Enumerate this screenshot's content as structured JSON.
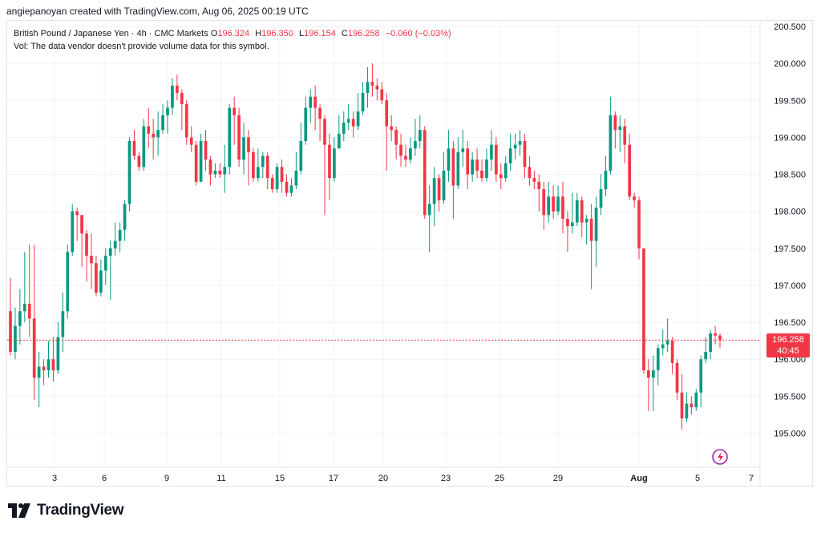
{
  "header": {
    "created_by": "angiepanoyan created with TradingView.com, Aug 06, 2025 00:19 UTC"
  },
  "legend": {
    "symbol": "British Pound / Japanese Yen · 4h · CMC Markets",
    "open_label": "O",
    "open": "196.324",
    "high_label": "H",
    "high": "196.350",
    "low_label": "L",
    "low": "196.154",
    "close_label": "C",
    "close": "196.258",
    "change": "−0.060 (−0.03%)",
    "volume_note": "Vol: The data vendor doesn't provide volume data for this symbol."
  },
  "last_price": {
    "price": "196.258",
    "countdown": "40:45"
  },
  "colors": {
    "up": "#089981",
    "down": "#f23645",
    "grid": "#f0f3fa",
    "axis_text": "#131722"
  },
  "footer": {
    "brand": "TradingView",
    "logo_icon": "tradingview-logo-icon"
  },
  "chart_data": {
    "type": "candlestick",
    "title": "British Pound / Japanese Yen · 4h · CMC Markets",
    "y_axis": {
      "ticks": [
        "195.000",
        "195.500",
        "196.000",
        "196.500",
        "197.000",
        "197.500",
        "198.000",
        "198.500",
        "199.000",
        "199.500",
        "200.000",
        "200.500"
      ],
      "range": [
        194.65,
        200.6
      ]
    },
    "x_axis": {
      "range": [
        1.2,
        7.8
      ],
      "ticks": [
        {
          "label": "3",
          "value": 3.0
        },
        {
          "label": "6",
          "value": 3.9
        },
        {
          "label": "9",
          "value": 5.0
        },
        {
          "label": "11",
          "value": 5.95
        },
        {
          "label": "15",
          "value": 7.0
        },
        {
          "label": "17",
          "value": 7.95
        },
        {
          "label": "20",
          "value": 8.9
        },
        {
          "label": "23",
          "value": 10.0
        },
        {
          "label": "25",
          "value": 10.95
        },
        {
          "label": "29",
          "value": 12.0
        },
        {
          "label": "Aug",
          "value": 13.45
        },
        {
          "label": "5",
          "value": 14.5
        },
        {
          "label": "7",
          "value": 15.45
        }
      ]
    },
    "current_price": 196.258,
    "candles": [
      [
        196.65,
        196.1,
        197.1,
        196.05
      ],
      [
        196.1,
        196.45,
        196.7,
        196.0
      ],
      [
        196.45,
        196.65,
        196.95,
        196.2
      ],
      [
        196.65,
        196.75,
        197.45,
        196.5
      ],
      [
        196.75,
        196.55,
        197.55,
        196.3
      ],
      [
        196.55,
        195.75,
        197.55,
        195.45
      ],
      [
        195.75,
        195.9,
        196.1,
        195.35
      ],
      [
        195.9,
        195.85,
        196.0,
        195.65
      ],
      [
        195.85,
        196.0,
        196.25,
        195.75
      ],
      [
        196.0,
        195.85,
        196.3,
        195.7
      ],
      [
        195.85,
        196.3,
        196.5,
        195.8
      ],
      [
        196.3,
        196.65,
        196.9,
        196.1
      ],
      [
        196.65,
        197.45,
        197.55,
        196.55
      ],
      [
        197.45,
        198.0,
        198.1,
        197.4
      ],
      [
        198.0,
        197.95,
        198.05,
        197.6
      ],
      [
        197.95,
        197.7,
        197.95,
        197.25
      ],
      [
        197.7,
        197.4,
        197.75,
        197.05
      ],
      [
        197.4,
        197.3,
        197.7,
        196.95
      ],
      [
        197.3,
        196.9,
        197.4,
        196.85
      ],
      [
        196.9,
        197.2,
        197.35,
        196.85
      ],
      [
        197.2,
        197.4,
        197.5,
        197.0
      ],
      [
        197.4,
        197.5,
        197.6,
        196.8
      ],
      [
        197.5,
        197.6,
        197.85,
        197.4
      ],
      [
        197.6,
        197.75,
        197.85,
        197.45
      ],
      [
        197.75,
        198.1,
        198.15,
        197.6
      ],
      [
        198.1,
        198.95,
        199.0,
        198.0
      ],
      [
        198.95,
        198.75,
        199.1,
        198.7
      ],
      [
        198.75,
        198.6,
        198.8,
        198.55
      ],
      [
        198.6,
        199.15,
        199.25,
        198.55
      ],
      [
        199.15,
        199.05,
        199.4,
        198.85
      ],
      [
        199.05,
        199.0,
        199.25,
        198.7
      ],
      [
        199.0,
        199.1,
        199.35,
        198.75
      ],
      [
        199.1,
        199.3,
        199.45,
        199.05
      ],
      [
        199.3,
        199.4,
        199.5,
        199.05
      ],
      [
        199.4,
        199.7,
        199.8,
        199.3
      ],
      [
        199.7,
        199.6,
        199.85,
        199.5
      ],
      [
        199.6,
        199.45,
        199.65,
        199.1
      ],
      [
        199.45,
        199.0,
        199.5,
        198.9
      ],
      [
        199.0,
        198.9,
        199.15,
        198.8
      ],
      [
        198.9,
        198.4,
        198.95,
        198.35
      ],
      [
        198.4,
        198.95,
        199.05,
        198.4
      ],
      [
        198.95,
        198.7,
        199.1,
        198.55
      ],
      [
        198.7,
        198.5,
        198.75,
        198.35
      ],
      [
        198.5,
        198.55,
        198.65,
        198.45
      ],
      [
        198.55,
        198.5,
        198.65,
        198.45
      ],
      [
        198.5,
        198.6,
        198.9,
        198.25
      ],
      [
        198.6,
        199.4,
        199.45,
        198.5
      ],
      [
        199.4,
        199.3,
        199.55,
        198.9
      ],
      [
        199.3,
        198.7,
        199.4,
        198.6
      ],
      [
        198.7,
        199.0,
        199.2,
        198.5
      ],
      [
        199.0,
        198.8,
        199.1,
        198.35
      ],
      [
        198.8,
        198.45,
        198.85,
        198.4
      ],
      [
        198.45,
        198.6,
        198.85,
        198.4
      ],
      [
        198.6,
        198.75,
        198.8,
        198.45
      ],
      [
        198.75,
        198.45,
        198.8,
        198.3
      ],
      [
        198.45,
        198.3,
        198.5,
        198.25
      ],
      [
        198.3,
        198.6,
        198.65,
        198.25
      ],
      [
        198.6,
        198.4,
        198.7,
        198.25
      ],
      [
        198.4,
        198.25,
        198.5,
        198.2
      ],
      [
        198.25,
        198.35,
        198.45,
        198.2
      ],
      [
        198.35,
        198.55,
        198.8,
        198.3
      ],
      [
        198.55,
        198.95,
        199.2,
        198.5
      ],
      [
        198.95,
        199.4,
        199.55,
        198.9
      ],
      [
        199.4,
        199.55,
        199.65,
        199.2
      ],
      [
        199.55,
        199.4,
        199.7,
        199.1
      ],
      [
        199.4,
        199.25,
        199.45,
        198.95
      ],
      [
        199.25,
        198.9,
        199.3,
        197.95
      ],
      [
        198.9,
        198.45,
        199.05,
        198.15
      ],
      [
        198.45,
        198.85,
        199.0,
        198.4
      ],
      [
        198.85,
        199.05,
        199.3,
        198.85
      ],
      [
        199.05,
        199.2,
        199.35,
        198.95
      ],
      [
        199.2,
        199.25,
        199.45,
        199.1
      ],
      [
        199.25,
        199.15,
        199.35,
        199.0
      ],
      [
        199.15,
        199.35,
        199.6,
        199.1
      ],
      [
        199.35,
        199.6,
        199.75,
        199.3
      ],
      [
        199.6,
        199.75,
        199.95,
        199.4
      ],
      [
        199.75,
        199.7,
        200.0,
        199.55
      ],
      [
        199.7,
        199.65,
        199.8,
        199.5
      ],
      [
        199.65,
        199.5,
        199.75,
        199.45
      ],
      [
        199.5,
        199.15,
        199.6,
        198.55
      ],
      [
        199.15,
        199.1,
        199.3,
        198.95
      ],
      [
        199.1,
        198.9,
        199.15,
        198.7
      ],
      [
        198.9,
        198.75,
        199.05,
        198.6
      ],
      [
        198.75,
        198.7,
        198.9,
        198.6
      ],
      [
        198.7,
        198.85,
        199.0,
        198.65
      ],
      [
        198.85,
        198.95,
        199.25,
        198.75
      ],
      [
        198.95,
        199.1,
        199.3,
        198.85
      ],
      [
        199.1,
        197.95,
        199.15,
        197.9
      ],
      [
        197.95,
        198.1,
        198.35,
        197.45
      ],
      [
        198.1,
        198.45,
        198.6,
        197.8
      ],
      [
        198.45,
        198.15,
        198.5,
        198.0
      ],
      [
        198.15,
        198.55,
        198.8,
        198.1
      ],
      [
        198.55,
        198.85,
        199.1,
        198.4
      ],
      [
        198.85,
        198.35,
        198.95,
        197.9
      ],
      [
        198.35,
        198.8,
        199.0,
        198.3
      ],
      [
        198.8,
        198.85,
        199.1,
        198.6
      ],
      [
        198.85,
        198.5,
        198.95,
        198.3
      ],
      [
        198.5,
        198.7,
        198.8,
        198.4
      ],
      [
        198.7,
        198.55,
        198.85,
        198.45
      ],
      [
        198.55,
        198.45,
        198.7,
        198.4
      ],
      [
        198.45,
        198.7,
        198.85,
        198.4
      ],
      [
        198.7,
        198.9,
        199.1,
        198.55
      ],
      [
        198.9,
        198.5,
        199.0,
        198.4
      ],
      [
        198.5,
        198.45,
        198.65,
        198.3
      ],
      [
        198.45,
        198.65,
        198.75,
        198.4
      ],
      [
        198.65,
        198.85,
        199.05,
        198.55
      ],
      [
        198.85,
        198.9,
        199.05,
        198.7
      ],
      [
        198.9,
        198.95,
        199.1,
        198.75
      ],
      [
        198.95,
        198.6,
        199.05,
        198.45
      ],
      [
        198.6,
        198.45,
        198.75,
        198.35
      ],
      [
        198.45,
        198.4,
        198.55,
        198.3
      ],
      [
        198.4,
        198.3,
        198.5,
        198.0
      ],
      [
        198.3,
        197.95,
        198.4,
        197.75
      ],
      [
        197.95,
        198.2,
        198.4,
        197.85
      ],
      [
        198.2,
        198.0,
        198.35,
        197.9
      ],
      [
        198.0,
        198.2,
        198.35,
        197.95
      ],
      [
        198.2,
        197.9,
        198.4,
        197.7
      ],
      [
        197.9,
        197.8,
        198.0,
        197.45
      ],
      [
        197.8,
        197.85,
        198.25,
        197.7
      ],
      [
        197.85,
        198.15,
        198.25,
        197.8
      ],
      [
        198.15,
        197.85,
        198.2,
        197.65
      ],
      [
        197.85,
        197.9,
        197.95,
        197.55
      ],
      [
        197.9,
        197.6,
        198.1,
        196.95
      ],
      [
        197.6,
        198.05,
        198.2,
        197.25
      ],
      [
        198.05,
        198.3,
        198.5,
        197.95
      ],
      [
        198.3,
        198.55,
        198.75,
        198.2
      ],
      [
        198.55,
        199.3,
        199.55,
        198.5
      ],
      [
        199.3,
        199.1,
        199.35,
        198.85
      ],
      [
        199.1,
        199.15,
        199.3,
        198.8
      ],
      [
        199.15,
        198.9,
        199.25,
        198.65
      ],
      [
        198.9,
        198.2,
        199.05,
        198.15
      ],
      [
        198.2,
        198.15,
        198.25,
        198.05
      ],
      [
        198.15,
        197.5,
        198.2,
        197.35
      ],
      [
        197.5,
        195.85,
        197.5,
        195.8
      ],
      [
        195.85,
        195.75,
        196.0,
        195.3
      ],
      [
        195.75,
        195.85,
        196.05,
        195.3
      ],
      [
        195.85,
        196.15,
        196.2,
        195.65
      ],
      [
        196.15,
        196.2,
        196.4,
        196.05
      ],
      [
        196.2,
        196.25,
        196.55,
        196.1
      ],
      [
        196.25,
        195.95,
        196.3,
        195.8
      ],
      [
        195.95,
        195.55,
        196.0,
        195.45
      ],
      [
        195.55,
        195.2,
        195.8,
        195.05
      ],
      [
        195.2,
        195.4,
        195.55,
        195.15
      ],
      [
        195.4,
        195.35,
        195.5,
        195.25
      ],
      [
        195.35,
        195.55,
        195.6,
        195.3
      ],
      [
        195.55,
        196.0,
        196.05,
        195.35
      ],
      [
        196.0,
        196.1,
        196.3,
        195.95
      ],
      [
        196.1,
        196.35,
        196.4,
        196.0
      ],
      [
        196.35,
        196.32,
        196.45,
        196.2
      ],
      [
        196.32,
        196.26,
        196.35,
        196.15
      ]
    ]
  }
}
